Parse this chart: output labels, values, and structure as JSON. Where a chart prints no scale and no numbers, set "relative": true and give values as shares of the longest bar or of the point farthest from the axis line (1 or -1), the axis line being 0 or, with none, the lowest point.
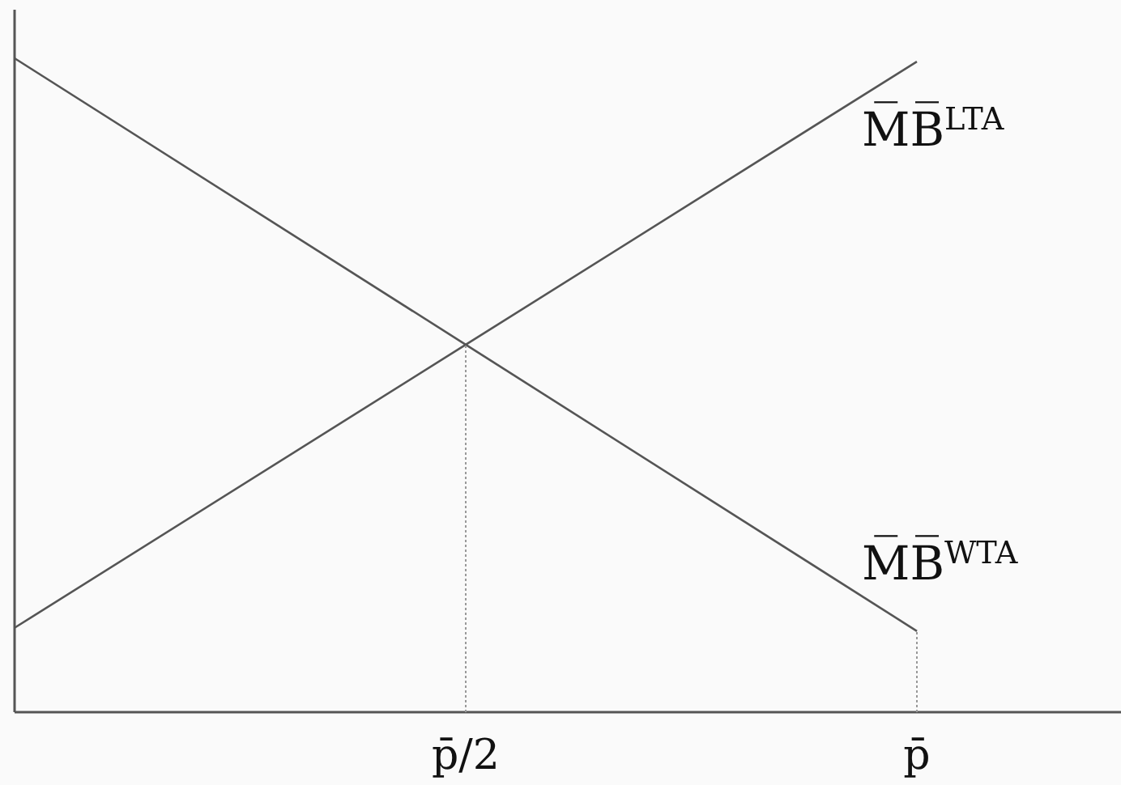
{
  "chart_data": {
    "type": "line",
    "relative": true,
    "line_style": "solid",
    "tick_labels": "x",
    "categories": [
      null,
      "p̄/2",
      "p̄"
    ],
    "series": [
      {
        "name": "M̅B̅$^{WTA}$",
        "color": "#555555",
        "values": [
          1,
          0.562,
          0.124
        ]
      },
      {
        "name": "M̅B̅$^{LTA}$",
        "color": "#555555",
        "values": [
          0.129,
          0.562,
          0.995
        ]
      },
      {
        "color": "#999999",
        "line_style": "dotted",
        "x": [
          "p̄/2",
          "p̄/2"
        ],
        "values": [
          0,
          0.562
        ]
      },
      {
        "color": "#999999",
        "line_style": "dotted",
        "x": [
          "p̄",
          "p̄"
        ],
        "values": [
          0,
          0.124
        ]
      }
    ]
  }
}
